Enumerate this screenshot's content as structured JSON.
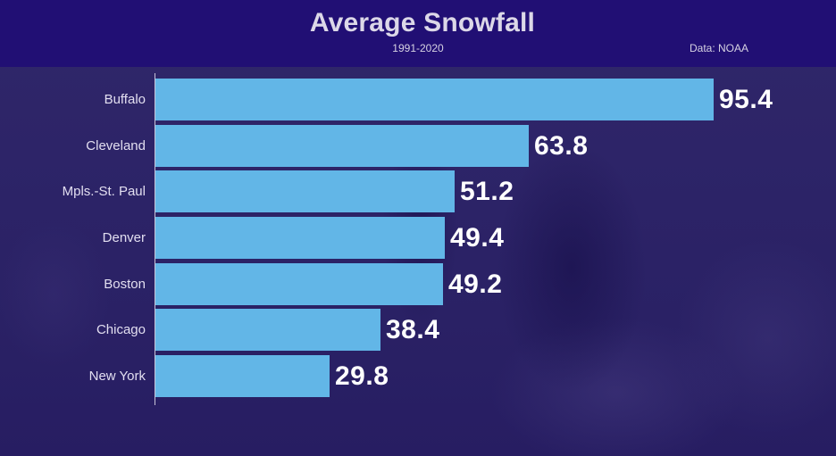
{
  "header": {
    "title": "Average Snowfall",
    "subtitle": "1991-2020",
    "source": "Data: NOAA"
  },
  "colors": {
    "header_bg": "#210f74",
    "bar": "#62b6e7",
    "background": "#2a1f63",
    "value_text": "#ffffff",
    "label_text": "#e2def0"
  },
  "chart_data": {
    "type": "bar",
    "orientation": "horizontal",
    "title": "Average Snowfall",
    "subtitle": "1991-2020",
    "source": "Data: NOAA",
    "xlabel": "",
    "ylabel": "",
    "categories": [
      "Buffalo",
      "Cleveland",
      "Mpls.-St. Paul",
      "Denver",
      "Boston",
      "Chicago",
      "New York"
    ],
    "values": [
      95.4,
      63.8,
      51.2,
      49.4,
      49.2,
      38.4,
      29.8
    ],
    "value_labels": [
      "95.4",
      "63.8",
      "51.2",
      "49.4",
      "49.2",
      "38.4",
      "29.8"
    ],
    "xlim": [
      0,
      95.4
    ],
    "grid": false,
    "legend": null,
    "data_labels": true
  },
  "rows": [
    {
      "label": "Buffalo",
      "value": "95.4"
    },
    {
      "label": "Cleveland",
      "value": "63.8"
    },
    {
      "label": "Mpls.-St. Paul",
      "value": "51.2"
    },
    {
      "label": "Denver",
      "value": "49.4"
    },
    {
      "label": "Boston",
      "value": "49.2"
    },
    {
      "label": "Chicago",
      "value": "38.4"
    },
    {
      "label": "New York",
      "value": "29.8"
    }
  ]
}
